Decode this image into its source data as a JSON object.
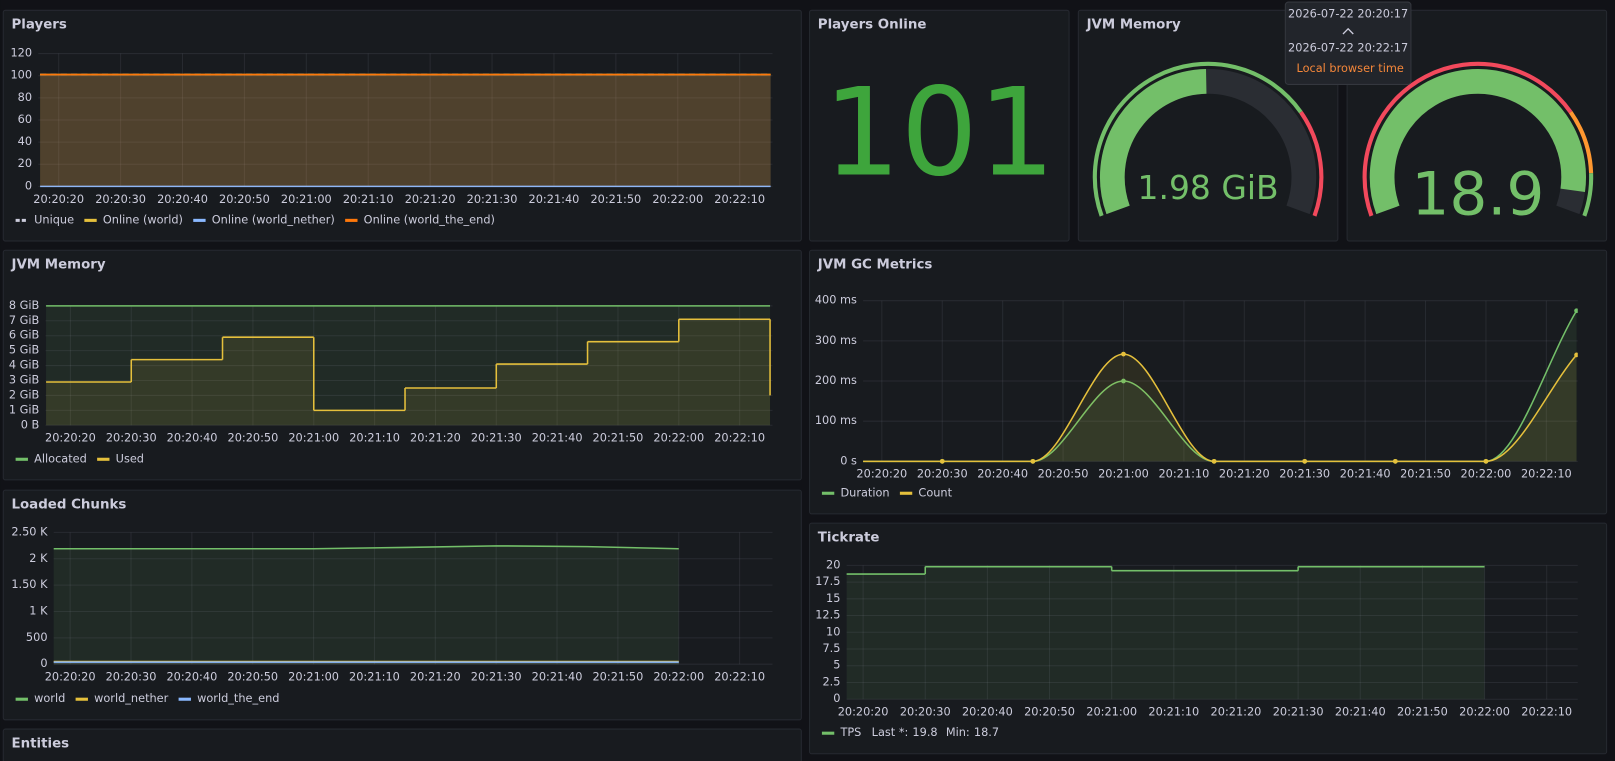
{
  "tooltip": {
    "from": "2026-07-22 20:20:17",
    "to": "2026-07-22 20:22:17",
    "note": "Local browser time"
  },
  "time_ticks": [
    {
      "value": 20,
      "label": "20:20:20"
    },
    {
      "value": 30,
      "label": "20:20:30"
    },
    {
      "value": 40,
      "label": "20:20:40"
    },
    {
      "value": 50,
      "label": "20:20:50"
    },
    {
      "value": 60,
      "label": "20:21:00"
    },
    {
      "value": 70,
      "label": "20:21:10"
    },
    {
      "value": 80,
      "label": "20:21:20"
    },
    {
      "value": 90,
      "label": "20:21:30"
    },
    {
      "value": 100,
      "label": "20:21:40"
    },
    {
      "value": 110,
      "label": "20:21:50"
    },
    {
      "value": 120,
      "label": "20:22:00"
    },
    {
      "value": 130,
      "label": "20:22:10"
    }
  ],
  "panels": [
    {
      "type": "timeseries",
      "title": "Players",
      "style": "line",
      "xlim": [
        16.7,
        135.3
      ],
      "ylim": [
        0,
        120
      ],
      "yticks": [
        0,
        20,
        40,
        60,
        80,
        100,
        120
      ],
      "series": [
        {
          "name": "Unique",
          "color": "#ccccdc",
          "dashed": true,
          "x": [
            17,
            30,
            45,
            60,
            75,
            90,
            105,
            120,
            135
          ],
          "values": [
            101,
            101,
            101,
            101,
            101,
            101,
            101,
            101,
            101
          ]
        },
        {
          "name": "Online (world)",
          "color": "#e5c03c",
          "x": [
            17,
            30,
            45,
            60,
            75,
            90,
            105,
            120,
            135
          ],
          "values": [
            101,
            101,
            101,
            101,
            101,
            101,
            101,
            101,
            101
          ]
        },
        {
          "name": "Online (world_nether)",
          "color": "#8ab8ff",
          "x": [
            17,
            30,
            45,
            60,
            75,
            90,
            105,
            120,
            135
          ],
          "values": [
            0,
            0,
            0,
            0,
            0,
            0,
            0,
            0,
            0
          ]
        },
        {
          "name": "Online (world_the_end)",
          "color": "#ff780a",
          "x": [
            17,
            30,
            45,
            60,
            75,
            90,
            105,
            120,
            135
          ],
          "values": [
            101,
            101,
            101,
            101,
            101,
            101,
            101,
            101,
            101
          ]
        }
      ]
    },
    {
      "type": "stat",
      "title": "Players Online",
      "value": 101,
      "color": "#3ea53c"
    },
    {
      "type": "gauge",
      "title": "JVM Memory",
      "value": 1.98,
      "value_label": "1.98 GiB",
      "min": 0,
      "max": 4,
      "thresholds": [
        {
          "color": "#73bf69",
          "value": 0
        },
        {
          "color": "#f2495c",
          "value": 3
        }
      ]
    },
    {
      "type": "gauge",
      "value": 18.9,
      "min": 0,
      "max": 20,
      "thresholds": [
        {
          "color": "#f2495c",
          "value": 0
        },
        {
          "color": "#ff9830",
          "value": 15
        },
        {
          "color": "#73bf69",
          "value": 18
        }
      ]
    },
    {
      "type": "timeseries",
      "title": "JVM Memory",
      "style": "step",
      "xlim": [
        15.9,
        135.4
      ],
      "ylim": [
        0,
        8
      ],
      "yticks": [
        {
          "value": 0,
          "label": "0 B"
        },
        {
          "value": 1,
          "label": "1 GiB"
        },
        {
          "value": 2,
          "label": "2 GiB"
        },
        {
          "value": 3,
          "label": "3 GiB"
        },
        {
          "value": 4,
          "label": "4 GiB"
        },
        {
          "value": 5,
          "label": "5 GiB"
        },
        {
          "value": 6,
          "label": "6 GiB"
        },
        {
          "value": 7,
          "label": "7 GiB"
        },
        {
          "value": 8,
          "label": "8 GiB"
        }
      ],
      "series": [
        {
          "name": "Allocated",
          "color": "#73bf69",
          "x": [
            16,
            135
          ],
          "values": [
            8,
            8
          ]
        },
        {
          "name": "Used",
          "color": "#e5c03c",
          "x": [
            16,
            30,
            45,
            60,
            75,
            90,
            105,
            120,
            135
          ],
          "values": [
            2.9,
            4.4,
            5.9,
            1.0,
            2.5,
            4.1,
            5.6,
            7.1,
            2.0
          ]
        }
      ]
    },
    {
      "type": "timeseries",
      "title": "JVM GC Metrics",
      "style": "smooth",
      "points": true,
      "xlim": [
        16.9,
        135.2
      ],
      "ylim": [
        0,
        400
      ],
      "yticks": [
        {
          "value": 0,
          "label": "0 s"
        },
        {
          "value": 100,
          "label": "100 ms"
        },
        {
          "value": 200,
          "label": "200 ms"
        },
        {
          "value": 300,
          "label": "300 ms"
        },
        {
          "value": 400,
          "label": "400 ms"
        }
      ],
      "series": [
        {
          "name": "Duration",
          "color": "#73bf69",
          "x": [
            15,
            30,
            45,
            60,
            75,
            90,
            105,
            120,
            135
          ],
          "values": [
            0,
            0,
            0,
            200,
            0,
            0,
            0,
            0,
            375
          ]
        },
        {
          "name": "Count",
          "color": "#e5c03c",
          "x": [
            15,
            30,
            45,
            60,
            75,
            90,
            105,
            120,
            135
          ],
          "values": [
            0,
            0,
            0,
            267,
            0,
            0,
            0,
            0,
            265
          ]
        }
      ]
    },
    {
      "type": "timeseries",
      "title": "Loaded Chunks",
      "style": "line",
      "xlim": [
        17.3,
        135.4
      ],
      "ylim": [
        0,
        2500
      ],
      "yticks": [
        0,
        500,
        {
          "value": 1000,
          "label": "1 K"
        },
        {
          "value": 1500,
          "label": "1.50 K"
        },
        {
          "value": 2000,
          "label": "2 K"
        },
        {
          "value": 2500,
          "label": "2.50 K"
        }
      ],
      "series": [
        {
          "name": "world",
          "color": "#73bf69",
          "x": [
            17,
            30,
            45,
            60,
            75,
            90,
            105,
            120
          ],
          "values": [
            2190,
            2190,
            2190,
            2190,
            2215,
            2245,
            2230,
            2190
          ]
        },
        {
          "name": "world_nether",
          "color": "#e5c03c",
          "x": [
            17,
            30,
            45,
            60,
            75,
            90,
            105,
            120
          ],
          "values": [
            50,
            50,
            50,
            50,
            50,
            50,
            50,
            50
          ]
        },
        {
          "name": "world_the_end",
          "color": "#8ab8ff",
          "x": [
            17,
            30,
            45,
            60,
            75,
            90,
            105,
            120
          ],
          "values": [
            40,
            40,
            40,
            40,
            40,
            40,
            40,
            40
          ]
        }
      ]
    },
    {
      "type": "timeseries",
      "title": "Tickrate",
      "style": "step",
      "xlim": [
        17.35,
        135
      ],
      "ylim": [
        0,
        20
      ],
      "yticks": [
        0,
        2.5,
        5,
        7.5,
        10,
        12.5,
        15,
        17.5,
        20
      ],
      "series": [
        {
          "name": "TPS",
          "color": "#73bf69",
          "x": [
            17,
            30,
            60,
            90,
            120
          ],
          "values": [
            18.7,
            19.8,
            19.2,
            19.8,
            19.8
          ],
          "legend_stats": [
            {
              "label": "Last *:",
              "value": 19.8
            },
            {
              "label": "Min:",
              "value": 18.7
            }
          ]
        }
      ]
    },
    {
      "type": "empty",
      "title": "Entities"
    }
  ]
}
